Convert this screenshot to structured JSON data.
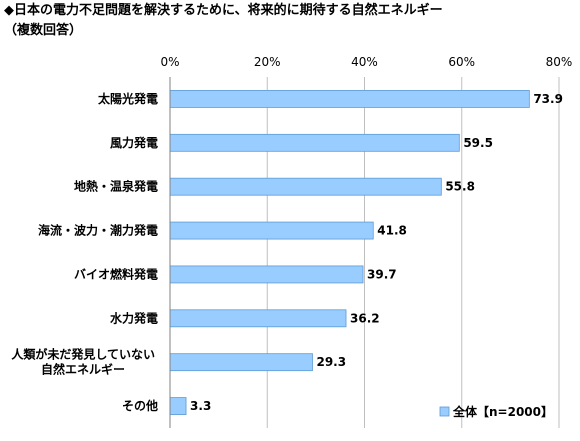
{
  "title": "◆日本の電力不足問題を解決するために、将来的に期待する自然エネルギー",
  "subtitle": "（複数回答）",
  "chart_data": {
    "type": "bar",
    "orientation": "horizontal",
    "categories": [
      [
        "太陽光発電"
      ],
      [
        "風力発電"
      ],
      [
        "地熱・温泉発電"
      ],
      [
        "海流・波力・潮力発電"
      ],
      [
        "バイオ燃料発電"
      ],
      [
        "水力発電"
      ],
      [
        "人類が未だ発見していない",
        "自然エネルギー"
      ],
      [
        "その他"
      ]
    ],
    "series": [
      {
        "name": "全体【n=2000】",
        "values": [
          73.9,
          59.5,
          55.8,
          41.8,
          39.7,
          36.2,
          29.3,
          3.3
        ]
      }
    ],
    "xlim": [
      0,
      80
    ],
    "xticks": [
      0,
      20,
      40,
      60,
      80
    ],
    "xtick_labels": [
      "0%",
      "20%",
      "40%",
      "60%",
      "80%"
    ],
    "grid": true,
    "legend_position": "bottom-right",
    "bar_color": "#99ccff",
    "bar_border_color": "#5b9bd5"
  }
}
